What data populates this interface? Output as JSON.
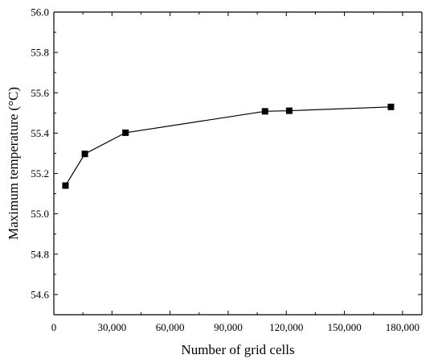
{
  "chart_data": {
    "type": "line",
    "title": "",
    "xlabel": "Number of grid cells",
    "ylabel": "Maximum temperature (°C)",
    "xlim": [
      0,
      190000
    ],
    "ylim": [
      54.5,
      56.0
    ],
    "x_ticks": [
      0,
      30000,
      60000,
      90000,
      120000,
      150000,
      180000
    ],
    "x_tick_labels": [
      "0",
      "30,000",
      "60,000",
      "90,000",
      "120,000",
      "150,000",
      "180,000"
    ],
    "y_ticks": [
      54.6,
      54.8,
      55.0,
      55.2,
      55.4,
      55.6,
      55.8,
      56.0
    ],
    "y_tick_labels": [
      "54.6",
      "54.8",
      "55.0",
      "55.2",
      "55.4",
      "55.6",
      "55.8",
      "56.0"
    ],
    "grid": false,
    "marker": "square",
    "color": "#000000",
    "series": [
      {
        "x": [
          6000,
          16000,
          37000,
          109000,
          121500,
          174000
        ],
        "y": [
          55.14,
          55.297,
          55.402,
          55.508,
          55.511,
          55.53
        ]
      }
    ]
  }
}
